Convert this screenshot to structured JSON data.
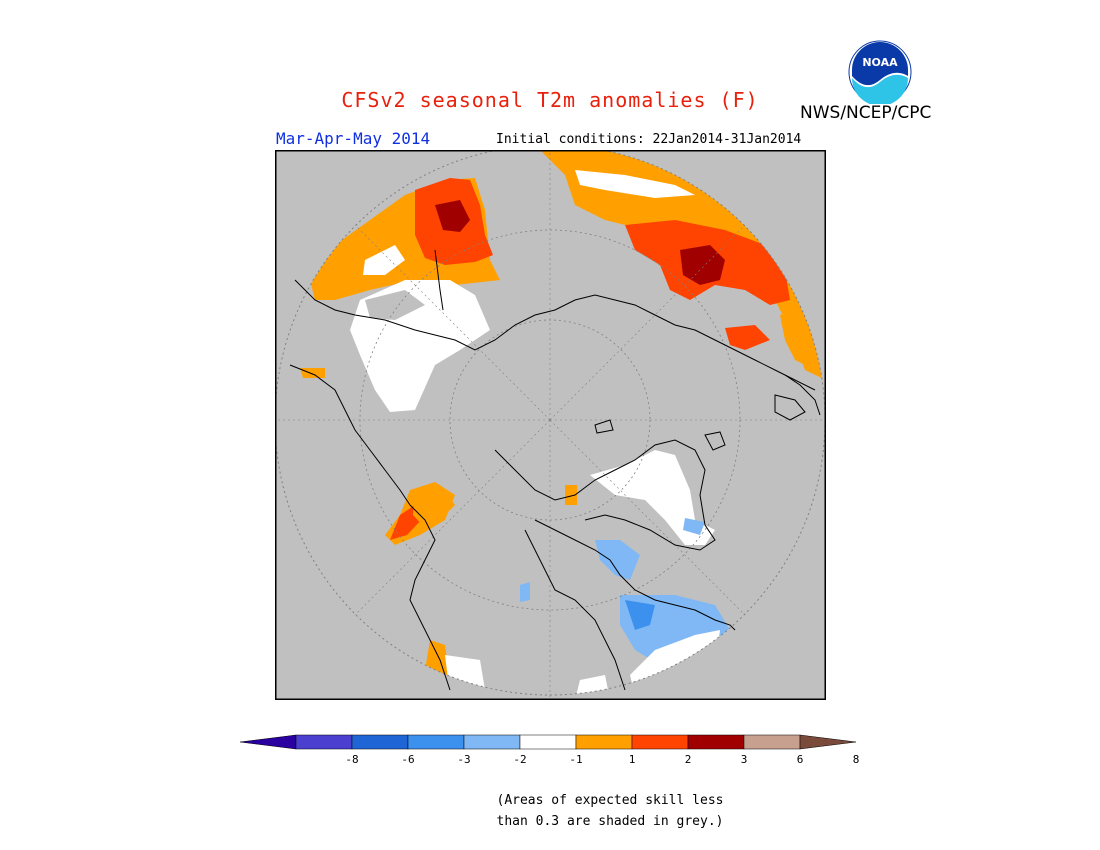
{
  "header": {
    "title": "CFSv2 seasonal T2m anomalies (F)",
    "organization": "NWS/NCEP/CPC",
    "season": "Mar-Apr-May 2014",
    "initial_conditions": "Initial conditions: 22Jan2014-31Jan2014",
    "logo_text": "NOAA",
    "logo_icon": "noaa-logo-icon"
  },
  "map": {
    "projection": "north-polar-stereographic",
    "no_skill_color": "#c0c0c0",
    "ocean_color": "#c0c0c0"
  },
  "colorbar": {
    "colors": [
      "#2a00a0",
      "#4b3fd0",
      "#1f65d6",
      "#3c90ee",
      "#7fb8f4",
      "#ffffff",
      "#ffa000",
      "#ff4300",
      "#a00000",
      "#c8a090",
      "#7a4a3a"
    ],
    "labels": [
      "-8",
      "-6",
      "-3",
      "-2",
      "-1",
      "1",
      "2",
      "3",
      "6",
      "8"
    ]
  },
  "note": {
    "line1": "(Areas of expected skill less",
    "line2": "than 0.3 are shaded in grey.)"
  }
}
